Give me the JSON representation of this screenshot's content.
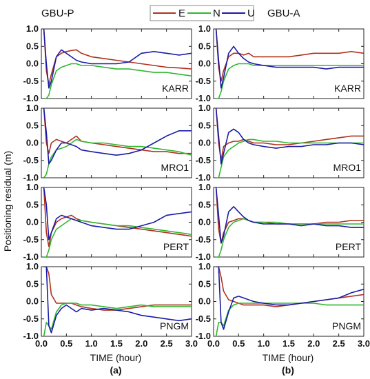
{
  "header": {
    "left_title": "GBU-P",
    "right_title": "GBU-A"
  },
  "legend": [
    {
      "name": "E",
      "color": "#b0301c"
    },
    {
      "name": "N",
      "color": "#2eb82e"
    },
    {
      "name": "U",
      "color": "#1a1aa6"
    }
  ],
  "y_axis_title": "Positioning residual (m)",
  "x_axis_title": "TIME (hour)",
  "panel_tags": [
    "(a)",
    "(b)"
  ],
  "y_ticks": [
    "1.0",
    "0.5",
    "0.0",
    "-0.5",
    "-1.0"
  ],
  "x_ticks": [
    "0.0",
    "0.5",
    "1.0",
    "1.5",
    "2.0",
    "2.5",
    "3.0"
  ],
  "chart_data": {
    "type": "line",
    "xlabel": "TIME (hour)",
    "ylabel": "Positioning residual (m)",
    "xlim": [
      0,
      3
    ],
    "ylim": [
      -1,
      1
    ],
    "x": [
      0.05,
      0.1,
      0.15,
      0.2,
      0.3,
      0.4,
      0.5,
      0.6,
      0.7,
      0.8,
      1.0,
      1.25,
      1.5,
      1.75,
      2.0,
      2.25,
      2.5,
      2.75,
      3.0
    ],
    "panels": [
      {
        "column": "GBU-P",
        "site": "KARR",
        "series": [
          {
            "name": "E",
            "values": [
              1.0,
              -0.2,
              -0.6,
              -0.3,
              0.2,
              0.3,
              0.35,
              0.38,
              0.4,
              0.3,
              0.2,
              0.15,
              0.1,
              0.05,
              0.0,
              -0.05,
              -0.1,
              -0.12,
              -0.15
            ]
          },
          {
            "name": "N",
            "values": [
              -1.0,
              -1.0,
              -0.9,
              -0.6,
              -0.2,
              -0.1,
              -0.05,
              0.0,
              0.0,
              -0.05,
              -0.05,
              -0.1,
              -0.15,
              -0.15,
              -0.2,
              -0.25,
              -0.25,
              -0.3,
              -0.35
            ]
          },
          {
            "name": "U",
            "values": [
              1.0,
              0.0,
              -0.7,
              -0.5,
              0.2,
              0.4,
              0.3,
              0.2,
              0.1,
              0.05,
              0.0,
              0.0,
              0.0,
              0.05,
              0.3,
              0.35,
              0.3,
              0.25,
              0.3
            ]
          }
        ]
      },
      {
        "column": "GBU-A",
        "site": "KARR",
        "series": [
          {
            "name": "E",
            "values": [
              1.0,
              -0.1,
              -0.5,
              -0.2,
              0.2,
              0.3,
              0.3,
              0.25,
              0.3,
              0.2,
              0.2,
              0.2,
              0.2,
              0.25,
              0.3,
              0.3,
              0.3,
              0.35,
              0.3
            ]
          },
          {
            "name": "N",
            "values": [
              -1.0,
              -1.0,
              -0.8,
              -0.5,
              -0.15,
              -0.05,
              0.0,
              0.0,
              0.0,
              -0.05,
              -0.05,
              -0.05,
              -0.05,
              -0.05,
              -0.05,
              -0.05,
              -0.05,
              -0.05,
              -0.05
            ]
          },
          {
            "name": "U",
            "values": [
              1.0,
              0.1,
              -0.7,
              -0.4,
              0.3,
              0.5,
              0.3,
              0.15,
              0.05,
              0.0,
              -0.05,
              -0.1,
              -0.1,
              -0.1,
              -0.1,
              -0.15,
              -0.1,
              -0.1,
              -0.1
            ]
          }
        ]
      },
      {
        "column": "GBU-P",
        "site": "MRO1",
        "series": [
          {
            "name": "E",
            "values": [
              1.0,
              0.0,
              -0.3,
              0.0,
              0.1,
              0.05,
              0.0,
              0.1,
              0.2,
              0.05,
              0.0,
              -0.05,
              -0.1,
              -0.15,
              -0.2,
              -0.25,
              -0.25,
              -0.3,
              -0.3
            ]
          },
          {
            "name": "N",
            "values": [
              -1.0,
              -0.9,
              -0.6,
              -0.4,
              -0.2,
              -0.15,
              -0.1,
              0.0,
              0.1,
              0.05,
              0.0,
              0.0,
              -0.05,
              -0.1,
              -0.1,
              -0.15,
              -0.2,
              -0.25,
              -0.35
            ]
          },
          {
            "name": "U",
            "values": [
              1.0,
              0.3,
              -0.6,
              -0.5,
              -0.2,
              0.0,
              0.0,
              -0.05,
              -0.1,
              -0.2,
              -0.25,
              -0.3,
              -0.35,
              -0.3,
              -0.2,
              0.0,
              0.2,
              0.35,
              0.35
            ]
          }
        ]
      },
      {
        "column": "GBU-A",
        "site": "MRO1",
        "series": [
          {
            "name": "E",
            "values": [
              1.0,
              0.0,
              -0.5,
              -0.1,
              0.0,
              0.05,
              0.05,
              0.1,
              0.05,
              0.0,
              0.0,
              -0.05,
              -0.05,
              0.0,
              0.05,
              0.1,
              0.15,
              0.2,
              0.2
            ]
          },
          {
            "name": "N",
            "values": [
              -1.0,
              -1.0,
              -0.7,
              -0.4,
              -0.2,
              -0.1,
              0.0,
              0.05,
              0.1,
              0.1,
              0.05,
              0.05,
              0.0,
              0.0,
              0.0,
              0.0,
              0.0,
              0.0,
              0.0
            ]
          },
          {
            "name": "U",
            "values": [
              1.0,
              0.2,
              -0.6,
              -0.3,
              0.3,
              0.4,
              0.3,
              0.1,
              0.0,
              -0.05,
              -0.1,
              -0.15,
              -0.1,
              -0.1,
              -0.05,
              -0.05,
              0.0,
              0.0,
              -0.05
            ]
          }
        ]
      },
      {
        "column": "GBU-P",
        "site": "PERT",
        "series": [
          {
            "name": "E",
            "values": [
              1.0,
              -0.3,
              -0.7,
              -0.3,
              0.0,
              0.1,
              0.15,
              0.2,
              0.1,
              0.05,
              0.0,
              -0.05,
              -0.1,
              -0.15,
              -0.2,
              -0.25,
              -0.3,
              -0.35,
              -0.4
            ]
          },
          {
            "name": "N",
            "values": [
              -1.0,
              -1.0,
              -0.8,
              -0.5,
              -0.2,
              -0.1,
              0.0,
              0.1,
              0.05,
              0.05,
              0.0,
              -0.05,
              -0.1,
              -0.1,
              -0.15,
              -0.2,
              -0.25,
              -0.3,
              -0.35
            ]
          },
          {
            "name": "U",
            "values": [
              1.0,
              0.5,
              -0.5,
              -0.3,
              0.1,
              0.2,
              0.15,
              0.1,
              0.05,
              0.0,
              -0.1,
              -0.15,
              -0.2,
              -0.2,
              -0.1,
              0.0,
              0.2,
              0.25,
              0.3
            ]
          }
        ]
      },
      {
        "column": "GBU-A",
        "site": "PERT",
        "series": [
          {
            "name": "E",
            "values": [
              1.0,
              -0.2,
              -0.6,
              -0.3,
              0.0,
              0.05,
              0.1,
              0.1,
              0.05,
              0.0,
              0.0,
              -0.05,
              -0.05,
              -0.05,
              -0.05,
              0.0,
              0.0,
              0.05,
              0.05
            ]
          },
          {
            "name": "N",
            "values": [
              -1.0,
              -1.0,
              -0.8,
              -0.5,
              -0.15,
              0.0,
              0.05,
              0.1,
              0.05,
              0.0,
              0.0,
              0.0,
              -0.05,
              -0.05,
              -0.05,
              -0.05,
              -0.05,
              -0.05,
              -0.05
            ]
          },
          {
            "name": "U",
            "values": [
              1.0,
              0.2,
              -0.6,
              -0.4,
              0.3,
              0.45,
              0.3,
              0.15,
              0.05,
              0.0,
              -0.05,
              -0.05,
              -0.05,
              -0.1,
              -0.05,
              -0.1,
              -0.1,
              -0.15,
              -0.15
            ]
          }
        ]
      },
      {
        "column": "GBU-P",
        "site": "PNGM",
        "series": [
          {
            "name": "E",
            "values": [
              1.0,
              1.0,
              0.8,
              0.2,
              -0.05,
              -0.05,
              -0.05,
              -0.05,
              -0.1,
              -0.15,
              -0.2,
              -0.25,
              -0.25,
              -0.2,
              -0.15,
              -0.1,
              -0.1,
              -0.1,
              -0.1
            ]
          },
          {
            "name": "N",
            "values": [
              -1.0,
              -0.6,
              -0.7,
              -0.8,
              -0.3,
              -0.1,
              -0.05,
              -0.05,
              -0.05,
              -0.1,
              -0.1,
              -0.15,
              -0.2,
              -0.15,
              -0.1,
              -0.15,
              -0.15,
              -0.15,
              -0.15
            ]
          },
          {
            "name": "U",
            "values": [
              1.0,
              1.0,
              -0.7,
              -0.9,
              -0.4,
              -0.2,
              -0.1,
              -0.2,
              -0.3,
              -0.2,
              -0.25,
              -0.2,
              -0.25,
              -0.3,
              -0.4,
              -0.45,
              -0.5,
              -0.55,
              -0.5
            ]
          }
        ]
      },
      {
        "column": "GBU-A",
        "site": "PNGM",
        "series": [
          {
            "name": "E",
            "values": [
              1.0,
              1.0,
              0.7,
              0.3,
              0.05,
              0.0,
              -0.05,
              -0.1,
              -0.1,
              -0.1,
              -0.1,
              -0.15,
              -0.1,
              -0.05,
              0.0,
              0.05,
              0.1,
              0.15,
              0.2
            ]
          },
          {
            "name": "N",
            "values": [
              -1.0,
              -0.6,
              -0.6,
              -0.7,
              -0.25,
              -0.1,
              -0.05,
              -0.05,
              -0.05,
              -0.05,
              -0.05,
              -0.05,
              -0.05,
              -0.05,
              -0.05,
              -0.1,
              -0.1,
              -0.1,
              -0.1
            ]
          },
          {
            "name": "U",
            "values": [
              1.0,
              1.0,
              -0.6,
              -0.8,
              -0.3,
              0.1,
              0.15,
              0.1,
              0.05,
              0.0,
              -0.05,
              -0.1,
              -0.1,
              -0.05,
              0.0,
              0.05,
              0.1,
              0.25,
              0.35
            ]
          }
        ]
      }
    ]
  }
}
